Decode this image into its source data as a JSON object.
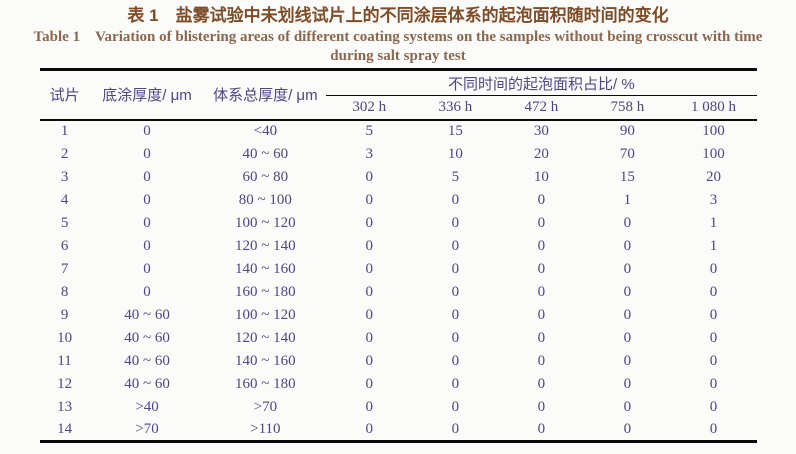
{
  "title": {
    "zh": "表 1　盐雾试验中未划线试片上的不同涂层体系的起泡面积随时间的变化",
    "en_line1": "Table 1　Variation of blistering areas of different coating systems on the samples without being crosscut with time",
    "en_line2": "during salt spray test"
  },
  "table": {
    "col_headers": {
      "sample": "试片",
      "primer": "底涂厚度/ μm",
      "total": "体系总厚度/ μm",
      "spanner": "不同时间的起泡面积占比/ %",
      "times": [
        "302 h",
        "336 h",
        "472 h",
        "758 h",
        "1 080 h"
      ]
    },
    "rows": [
      {
        "sample": "1",
        "primer": "0",
        "total": "<40",
        "values": [
          "5",
          "15",
          "30",
          "90",
          "100"
        ]
      },
      {
        "sample": "2",
        "primer": "0",
        "total": "40 ~ 60",
        "values": [
          "3",
          "10",
          "20",
          "70",
          "100"
        ]
      },
      {
        "sample": "3",
        "primer": "0",
        "total": "60 ~ 80",
        "values": [
          "0",
          "5",
          "10",
          "15",
          "20"
        ]
      },
      {
        "sample": "4",
        "primer": "0",
        "total": "80 ~ 100",
        "values": [
          "0",
          "0",
          "0",
          "1",
          "3"
        ]
      },
      {
        "sample": "5",
        "primer": "0",
        "total": "100 ~ 120",
        "values": [
          "0",
          "0",
          "0",
          "0",
          "1"
        ]
      },
      {
        "sample": "6",
        "primer": "0",
        "total": "120 ~ 140",
        "values": [
          "0",
          "0",
          "0",
          "0",
          "1"
        ]
      },
      {
        "sample": "7",
        "primer": "0",
        "total": "140 ~ 160",
        "values": [
          "0",
          "0",
          "0",
          "0",
          "0"
        ]
      },
      {
        "sample": "8",
        "primer": "0",
        "total": "160 ~ 180",
        "values": [
          "0",
          "0",
          "0",
          "0",
          "0"
        ]
      },
      {
        "sample": "9",
        "primer": "40 ~ 60",
        "total": "100 ~ 120",
        "values": [
          "0",
          "0",
          "0",
          "0",
          "0"
        ]
      },
      {
        "sample": "10",
        "primer": "40 ~ 60",
        "total": "120 ~ 140",
        "values": [
          "0",
          "0",
          "0",
          "0",
          "0"
        ]
      },
      {
        "sample": "11",
        "primer": "40 ~ 60",
        "total": "140 ~ 160",
        "values": [
          "0",
          "0",
          "0",
          "0",
          "0"
        ]
      },
      {
        "sample": "12",
        "primer": "40 ~ 60",
        "total": "160 ~ 180",
        "values": [
          "0",
          "0",
          "0",
          "0",
          "0"
        ]
      },
      {
        "sample": "13",
        "primer": ">40",
        "total": ">70",
        "values": [
          "0",
          "0",
          "0",
          "0",
          "0"
        ]
      },
      {
        "sample": "14",
        "primer": ">70",
        "total": ">110",
        "values": [
          "0",
          "0",
          "0",
          "0",
          "0"
        ]
      }
    ]
  },
  "colors": {
    "background": "#fbfbfa",
    "title_zh": "#7d4c28",
    "title_en": "#8a6750",
    "table_text": "#4e4685",
    "rule": "#0a0a0a"
  }
}
